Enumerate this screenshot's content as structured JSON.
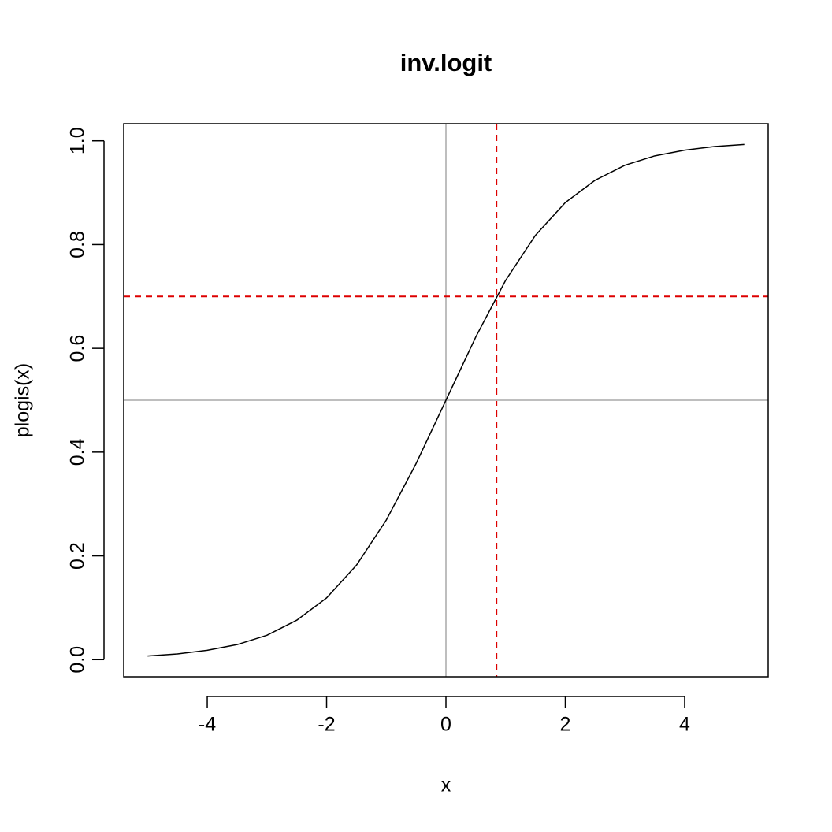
{
  "chart_data": {
    "type": "line",
    "title": "inv.logit",
    "x_label": "x",
    "y_label": "plogis(x)",
    "x": [
      -5,
      -4.5,
      -4,
      -3.5,
      -3,
      -2.5,
      -2,
      -1.5,
      -1,
      -0.5,
      0,
      0.5,
      1,
      1.5,
      2,
      2.5,
      3,
      3.5,
      4,
      4.5,
      5
    ],
    "series": [
      {
        "name": "plogis(x)",
        "color": "#000000",
        "values": [
          0.007,
          0.011,
          0.018,
          0.029,
          0.047,
          0.076,
          0.119,
          0.182,
          0.269,
          0.378,
          0.5,
          0.622,
          0.731,
          0.818,
          0.881,
          0.924,
          0.953,
          0.971,
          0.982,
          0.989,
          0.993
        ]
      }
    ],
    "xlim": [
      -5.4,
      5.4
    ],
    "ylim": [
      -0.033,
      1.033
    ],
    "xticks": [
      -4,
      -2,
      0,
      2,
      4
    ],
    "yticks": [
      {
        "value": 0,
        "label": "0.0"
      },
      {
        "value": 0.2,
        "label": "0.2"
      },
      {
        "value": 0.4,
        "label": "0.4"
      },
      {
        "value": 0.6,
        "label": "0.6"
      },
      {
        "value": 0.8,
        "label": "0.8"
      },
      {
        "value": 1,
        "label": "1.0"
      }
    ],
    "vlines": [
      {
        "value": 0,
        "color": "#bebebe",
        "dashed": false
      },
      {
        "value": 0.847,
        "color": "#dd0000",
        "dashed": true
      }
    ],
    "hlines": [
      {
        "value": 0.5,
        "color": "#bebebe",
        "dashed": false
      },
      {
        "value": 0.7,
        "color": "#dd0000",
        "dashed": true
      }
    ]
  }
}
